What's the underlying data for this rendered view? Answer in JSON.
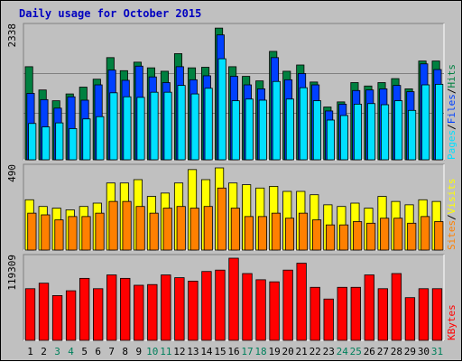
{
  "title": "Daily usage for October 2015",
  "colors": {
    "background": "#c0c0c0",
    "title": "#0000c0",
    "hits": "#008040",
    "files": "#0040ff",
    "pages": "#00e0ff",
    "visits": "#ffff00",
    "sites": "#ff8000",
    "kbytes": "#ff0000",
    "weekday_label": "#000000",
    "weekend_label": "#00805c"
  },
  "chart_data": [
    {
      "type": "bar",
      "panel": "top",
      "ymax_label": "2338",
      "ylim": [
        0,
        2338
      ],
      "categories": [
        "1",
        "2",
        "3",
        "4",
        "5",
        "6",
        "7",
        "8",
        "9",
        "10",
        "11",
        "12",
        "13",
        "14",
        "15",
        "16",
        "17",
        "18",
        "19",
        "20",
        "21",
        "22",
        "23",
        "24",
        "25",
        "26",
        "27",
        "28",
        "29",
        "30",
        "31"
      ],
      "weekend_days": [
        3,
        4,
        10,
        11,
        17,
        18,
        24,
        25,
        31
      ],
      "legend": [
        "Pages",
        "Files",
        "Hits"
      ],
      "series": [
        {
          "name": "Hits",
          "color": "#008040",
          "values": [
            1640,
            1230,
            1040,
            1160,
            1280,
            1420,
            1800,
            1570,
            1720,
            1620,
            1560,
            1870,
            1620,
            1630,
            2320,
            1640,
            1470,
            1390,
            1910,
            1560,
            1670,
            1370,
            930,
            1020,
            1360,
            1300,
            1360,
            1430,
            1250,
            1740,
            1740
          ]
        },
        {
          "name": "Files",
          "color": "#0040ff",
          "values": [
            1170,
            1060,
            910,
            1110,
            1050,
            1320,
            1580,
            1400,
            1650,
            1460,
            1360,
            1640,
            1410,
            1480,
            2200,
            1470,
            1320,
            1250,
            1800,
            1410,
            1520,
            1320,
            860,
            980,
            1220,
            1230,
            1250,
            1310,
            1200,
            1690,
            1590
          ]
        },
        {
          "name": "Pages",
          "color": "#00e0ff",
          "values": [
            640,
            580,
            650,
            550,
            720,
            760,
            1180,
            1110,
            1100,
            1190,
            1190,
            1310,
            1160,
            1260,
            1780,
            1040,
            1070,
            1050,
            1380,
            1070,
            1270,
            1040,
            700,
            780,
            980,
            990,
            970,
            1040,
            870,
            1320,
            1330
          ]
        }
      ]
    },
    {
      "type": "bar",
      "panel": "middle",
      "ymax_label": "490",
      "ylim": [
        0,
        490
      ],
      "categories": [
        "1",
        "2",
        "3",
        "4",
        "5",
        "6",
        "7",
        "8",
        "9",
        "10",
        "11",
        "12",
        "13",
        "14",
        "15",
        "16",
        "17",
        "18",
        "19",
        "20",
        "21",
        "22",
        "23",
        "24",
        "25",
        "26",
        "27",
        "28",
        "29",
        "30",
        "31"
      ],
      "weekend_days": [
        3,
        4,
        10,
        11,
        17,
        18,
        24,
        25,
        31
      ],
      "legend": [
        "Sites",
        "/",
        "Visits"
      ],
      "series": [
        {
          "name": "Visits",
          "color": "#ffff00",
          "values": [
            300,
            260,
            250,
            240,
            260,
            280,
            400,
            400,
            420,
            320,
            340,
            400,
            480,
            420,
            490,
            400,
            390,
            370,
            380,
            350,
            350,
            330,
            270,
            260,
            280,
            250,
            320,
            290,
            270,
            300,
            290
          ]
        },
        {
          "name": "Sites",
          "color": "#ff8000",
          "values": [
            220,
            210,
            180,
            200,
            200,
            220,
            290,
            290,
            260,
            220,
            250,
            260,
            250,
            260,
            370,
            250,
            200,
            200,
            220,
            190,
            220,
            180,
            150,
            150,
            170,
            160,
            190,
            190,
            160,
            200,
            170
          ]
        }
      ]
    },
    {
      "type": "bar",
      "panel": "bottom",
      "ymax_label": "119309",
      "ylim": [
        0,
        119309
      ],
      "categories": [
        "1",
        "2",
        "3",
        "4",
        "5",
        "6",
        "7",
        "8",
        "9",
        "10",
        "11",
        "12",
        "13",
        "14",
        "15",
        "16",
        "17",
        "18",
        "19",
        "20",
        "21",
        "22",
        "23",
        "24",
        "25",
        "26",
        "27",
        "28",
        "29",
        "30",
        "31"
      ],
      "weekend_days": [
        3,
        4,
        10,
        11,
        17,
        18,
        24,
        25,
        31
      ],
      "legend": [
        "KBytes"
      ],
      "series": [
        {
          "name": "KBytes",
          "color": "#ff0000",
          "values": [
            75000,
            83000,
            65000,
            72000,
            90000,
            75000,
            95000,
            90000,
            80000,
            81000,
            95000,
            91000,
            86000,
            100000,
            102000,
            121000,
            97000,
            88000,
            85000,
            102000,
            112000,
            77000,
            60000,
            77000,
            77000,
            95000,
            75000,
            97000,
            62000,
            75000,
            75000
          ]
        }
      ]
    }
  ]
}
